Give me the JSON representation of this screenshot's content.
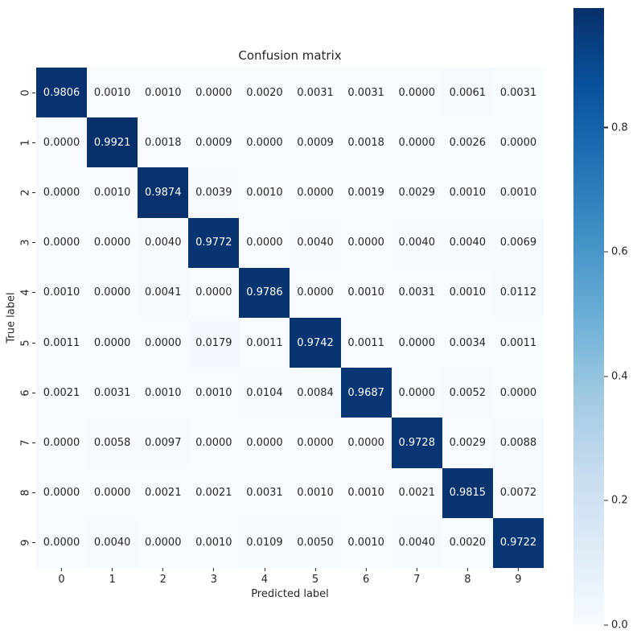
{
  "chart_data": {
    "type": "heatmap",
    "title": "Confusion matrix",
    "xlabel": "Predicted label",
    "ylabel": "True label",
    "x_tick_labels": [
      "0",
      "1",
      "2",
      "3",
      "4",
      "5",
      "6",
      "7",
      "8",
      "9"
    ],
    "y_tick_labels": [
      "0",
      "1",
      "2",
      "3",
      "4",
      "5",
      "6",
      "7",
      "8",
      "9"
    ],
    "values": [
      [
        0.9806,
        0.001,
        0.001,
        0.0,
        0.002,
        0.0031,
        0.0031,
        0.0,
        0.0061,
        0.0031
      ],
      [
        0.0,
        0.9921,
        0.0018,
        0.0009,
        0.0,
        0.0009,
        0.0018,
        0.0,
        0.0026,
        0.0
      ],
      [
        0.0,
        0.001,
        0.9874,
        0.0039,
        0.001,
        0.0,
        0.0019,
        0.0029,
        0.001,
        0.001
      ],
      [
        0.0,
        0.0,
        0.004,
        0.9772,
        0.0,
        0.004,
        0.0,
        0.004,
        0.004,
        0.0069
      ],
      [
        0.001,
        0.0,
        0.0041,
        0.0,
        0.9786,
        0.0,
        0.001,
        0.0031,
        0.001,
        0.0112
      ],
      [
        0.0011,
        0.0,
        0.0,
        0.0179,
        0.0011,
        0.9742,
        0.0011,
        0.0,
        0.0034,
        0.0011
      ],
      [
        0.0021,
        0.0031,
        0.001,
        0.001,
        0.0104,
        0.0084,
        0.9687,
        0.0,
        0.0052,
        0.0
      ],
      [
        0.0,
        0.0058,
        0.0097,
        0.0,
        0.0,
        0.0,
        0.0,
        0.9728,
        0.0029,
        0.0088
      ],
      [
        0.0,
        0.0,
        0.0021,
        0.0021,
        0.0031,
        0.001,
        0.001,
        0.0021,
        0.9815,
        0.0072
      ],
      [
        0.0,
        0.004,
        0.0,
        0.001,
        0.0109,
        0.005,
        0.001,
        0.004,
        0.002,
        0.9722
      ]
    ],
    "annotation_format": ".4f",
    "vmin": 0.0,
    "vmax": 0.9921,
    "colormap": "Blues",
    "grid": false,
    "legend_position": "right-colorbar",
    "colorbar": {
      "tick_labels": [
        "0.0",
        "0.2",
        "0.4",
        "0.6",
        "0.8"
      ],
      "tick_values": [
        0.0,
        0.2,
        0.4,
        0.6,
        0.8
      ]
    },
    "colormap_anchors": [
      [
        0.0,
        "#f7fbff"
      ],
      [
        0.125,
        "#deebf7"
      ],
      [
        0.25,
        "#c6dbef"
      ],
      [
        0.375,
        "#9ecae1"
      ],
      [
        0.5,
        "#6baed6"
      ],
      [
        0.625,
        "#4292c6"
      ],
      [
        0.75,
        "#2171b5"
      ],
      [
        0.875,
        "#08519c"
      ],
      [
        1.0,
        "#08306b"
      ]
    ],
    "text_colors": {
      "light_cell": "#262626",
      "dark_cell": "#ffffff"
    }
  }
}
